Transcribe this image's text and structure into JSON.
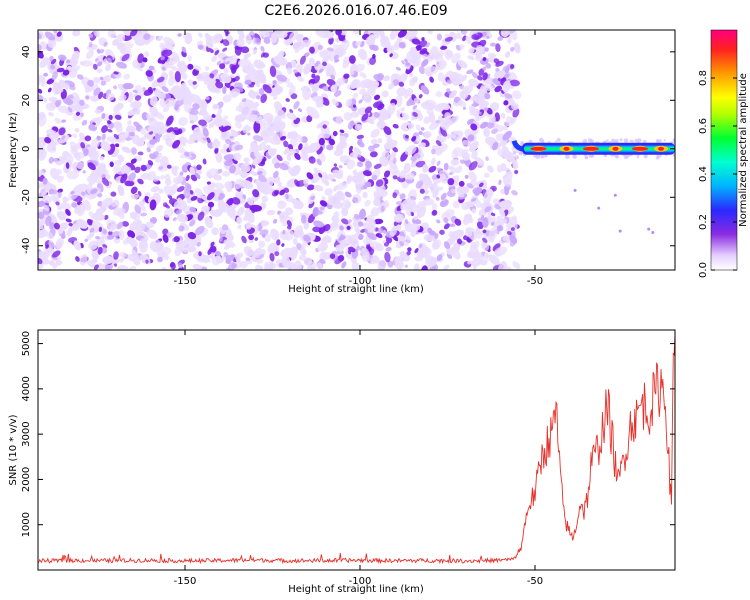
{
  "title": "C2E6.2026.016.07.46.E09",
  "chart_data": [
    {
      "type": "heatmap",
      "name": "spectrogram",
      "xlabel": "Height of straight line (km)",
      "ylabel": "Frequency (Hz)",
      "xlim": [
        -192,
        -10
      ],
      "ylim": [
        -50,
        49
      ],
      "xticks": [
        -150,
        -100,
        -50
      ],
      "xtick_labels": [
        "-150",
        "-100",
        "-50"
      ],
      "yticks": [
        -40,
        -20,
        0,
        20,
        40
      ],
      "ytick_labels": [
        "-40",
        "-20",
        "0",
        "20",
        "40"
      ],
      "noise_region_x": [
        -192,
        -55
      ],
      "signal_region_x": [
        -56,
        -10
      ],
      "signal_frequency_hz": 0,
      "colorbar": {
        "label": "Normalized spectral amplitude",
        "range": [
          0.0,
          1.0
        ],
        "ticks": [
          0.0,
          0.2,
          0.4,
          0.6,
          0.8
        ],
        "tick_labels": [
          "0.0",
          "0.2",
          "0.4",
          "0.6",
          "0.8"
        ],
        "colormap": "rainbow (white → violet → blue → cyan → green → yellow → orange → red → pink)"
      }
    },
    {
      "type": "line",
      "name": "snr",
      "xlabel": "Height of straight line (km)",
      "ylabel": "SNR (10 * v/v)",
      "xlim": [
        -192,
        -10
      ],
      "ylim": [
        0,
        5300
      ],
      "xticks": [
        -150,
        -100,
        -50
      ],
      "xtick_labels": [
        "-150",
        "-100",
        "-50"
      ],
      "yticks": [
        1000,
        2000,
        3000,
        4000,
        5000
      ],
      "ytick_labels": [
        "1000",
        "2000",
        "3000",
        "4000",
        "5000"
      ],
      "color": "#e8302a",
      "x": [
        -192,
        -180,
        -170,
        -160,
        -150,
        -140,
        -130,
        -120,
        -110,
        -100,
        -90,
        -80,
        -70,
        -60,
        -56,
        -54,
        -52,
        -50,
        -48,
        -46,
        -45,
        -44,
        -43,
        -42,
        -41,
        -40,
        -39,
        -38,
        -37,
        -36,
        -35,
        -34,
        -33,
        -32,
        -31,
        -30,
        -29,
        -28,
        -27,
        -26,
        -25,
        -24,
        -23,
        -22,
        -21,
        -20,
        -19,
        -18,
        -17,
        -16,
        -15,
        -14,
        -13,
        -12.5,
        -12,
        -11,
        -10.5,
        -10
      ],
      "y": [
        200,
        210,
        205,
        215,
        200,
        210,
        220,
        205,
        210,
        215,
        205,
        210,
        200,
        215,
        240,
        500,
        1400,
        1700,
        2500,
        2900,
        3000,
        3600,
        2300,
        1400,
        1000,
        800,
        700,
        1100,
        1500,
        1300,
        1600,
        2300,
        2500,
        2700,
        3000,
        3400,
        3500,
        2900,
        2300,
        1900,
        2400,
        2700,
        3100,
        3400,
        3300,
        3600,
        3700,
        3500,
        3600,
        3800,
        4000,
        4100,
        3900,
        3600,
        2700,
        1300,
        5000,
        5200
      ]
    }
  ]
}
